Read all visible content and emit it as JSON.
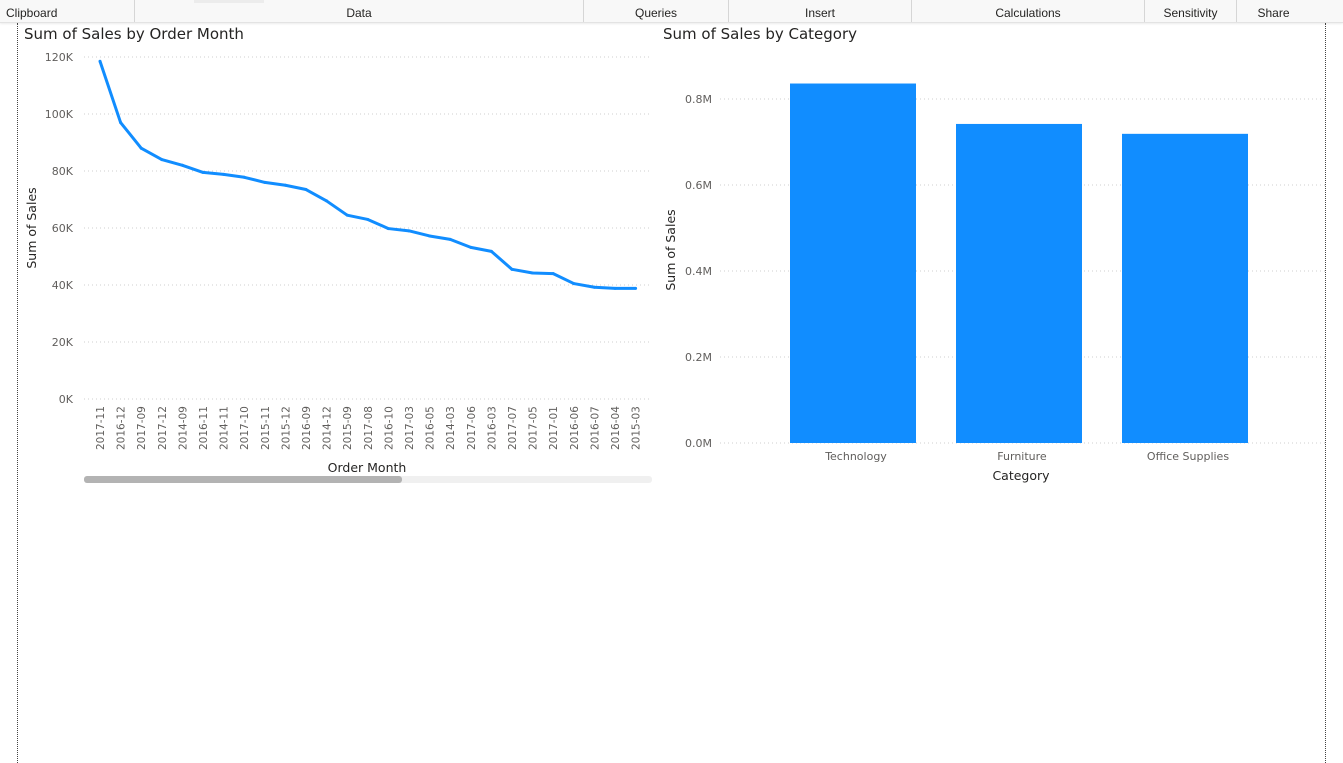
{
  "ribbon": {
    "groups": [
      "Clipboard",
      "Data",
      "Queries",
      "Insert",
      "Calculations",
      "Sensitivity",
      "Share"
    ]
  },
  "colors": {
    "series": "#118DFF",
    "grid": "#cfcfcf",
    "axis_text": "#605E5C"
  },
  "visuals": {
    "line": {
      "title": "Sum of Sales by Order Month"
    },
    "bar": {
      "title": "Sum of Sales by Category"
    }
  },
  "chart_data": [
    {
      "type": "line",
      "title": "Sum of Sales by Order Month",
      "xlabel": "Order Month",
      "ylabel": "Sum of Sales",
      "ylim": [
        0,
        120000
      ],
      "yticks": [
        "0K",
        "20K",
        "40K",
        "60K",
        "80K",
        "100K",
        "120K"
      ],
      "grid": true,
      "categories": [
        "2017-11",
        "2016-12",
        "2017-09",
        "2017-12",
        "2014-09",
        "2016-11",
        "2014-11",
        "2017-10",
        "2015-11",
        "2015-12",
        "2016-09",
        "2014-12",
        "2015-09",
        "2017-08",
        "2016-10",
        "2017-03",
        "2016-05",
        "2014-03",
        "2017-06",
        "2016-03",
        "2017-07",
        "2017-05",
        "2017-01",
        "2016-06",
        "2016-07",
        "2016-04",
        "2015-03"
      ],
      "series": [
        {
          "values": [
            118500,
            97000,
            88000,
            84000,
            82000,
            79500,
            78800,
            77800,
            76000,
            75000,
            73500,
            69500,
            64500,
            63000,
            59800,
            59000,
            57200,
            56000,
            53200,
            51800,
            45500,
            44200,
            44000,
            40500,
            39200,
            38800,
            38800
          ]
        }
      ]
    },
    {
      "type": "bar",
      "title": "Sum of Sales by Category",
      "xlabel": "Category",
      "ylabel": "Sum of Sales",
      "ylim": [
        0,
        0.9
      ],
      "yticks": [
        "0.0M",
        "0.2M",
        "0.4M",
        "0.6M",
        "0.8M"
      ],
      "grid": true,
      "categories": [
        "Technology",
        "Furniture",
        "Office Supplies"
      ],
      "values": [
        0.836,
        0.742,
        0.719
      ]
    }
  ]
}
